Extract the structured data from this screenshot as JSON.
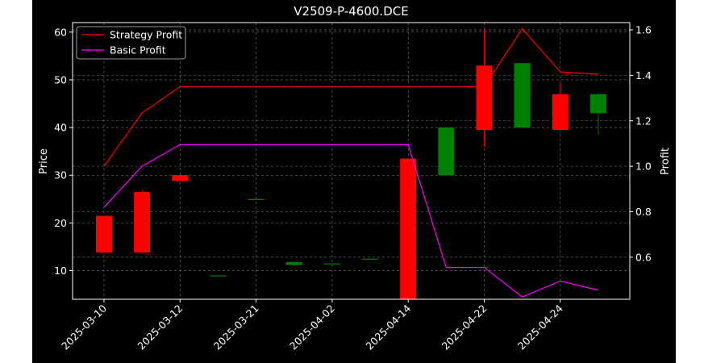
{
  "chart_data": {
    "type": "candlestick",
    "title": "V2509-P-4600.DCE",
    "xlabel": "",
    "ylabel": "Price",
    "y2label": "Profit",
    "x_tick_labels": [
      "2025-03-10",
      "2025-03-12",
      "2025-03-21",
      "2025-04-02",
      "2025-04-14",
      "2025-04-22",
      "2025-04-24"
    ],
    "y_ticks": [
      10,
      20,
      30,
      40,
      50,
      60
    ],
    "y2_ticks": [
      0.6,
      0.8,
      1.0,
      1.2,
      1.4,
      1.6
    ],
    "ylim": [
      4,
      62
    ],
    "y2lim": [
      0.415,
      1.632
    ],
    "grid": true,
    "legend_position": "upper-left",
    "colors": {
      "background": "#000000",
      "axes_frame": "#ffffff",
      "up_candle": "#008000",
      "down_candle": "#ff0000",
      "strategy_line": "#ff0000",
      "basic_line": "#ff00ff",
      "grid": "#7a7a7a"
    },
    "candles": [
      {
        "open": 21.5,
        "close": 13.8,
        "high": 21.5,
        "low": 13.8
      },
      {
        "open": 26.5,
        "close": 13.8,
        "high": 27.0,
        "low": 13.8
      },
      {
        "open": 30.0,
        "close": 28.8,
        "high": 30.0,
        "low": 28.8
      },
      {
        "open": 9.0,
        "close": 9.0,
        "high": 9.0,
        "low": 9.0
      },
      {
        "open": 25.0,
        "close": 25.0,
        "high": 25.0,
        "low": 25.0
      },
      {
        "open": 11.2,
        "close": 11.8,
        "high": 11.8,
        "low": 11.0
      },
      {
        "open": 11.5,
        "close": 11.5,
        "high": 11.5,
        "low": 11.5
      },
      {
        "open": 12.5,
        "close": 12.5,
        "high": 12.5,
        "low": 12.5
      },
      {
        "open": 33.5,
        "close": 4.0,
        "high": 33.5,
        "low": 4.0
      },
      {
        "open": 30.0,
        "close": 40.0,
        "high": 40.0,
        "low": 30.0
      },
      {
        "open": 53.0,
        "close": 39.5,
        "high": 60.5,
        "low": 36.0
      },
      {
        "open": 40.0,
        "close": 53.5,
        "high": 53.5,
        "low": 40.0
      },
      {
        "open": 47.0,
        "close": 39.5,
        "high": 49.5,
        "low": 39.5
      },
      {
        "open": 43.0,
        "close": 47.0,
        "high": 47.2,
        "low": 38.5
      }
    ],
    "series": [
      {
        "name": "Strategy Profit",
        "values": [
          1.0,
          1.235,
          1.35,
          1.35,
          1.35,
          1.35,
          1.35,
          1.35,
          1.35,
          1.35,
          1.35,
          1.605,
          1.415,
          1.405
        ]
      },
      {
        "name": "Basic Profit",
        "values": [
          0.82,
          1.0,
          1.095,
          1.095,
          1.095,
          1.095,
          1.095,
          1.095,
          1.095,
          0.555,
          0.555,
          0.425,
          0.495,
          0.455
        ]
      }
    ]
  }
}
